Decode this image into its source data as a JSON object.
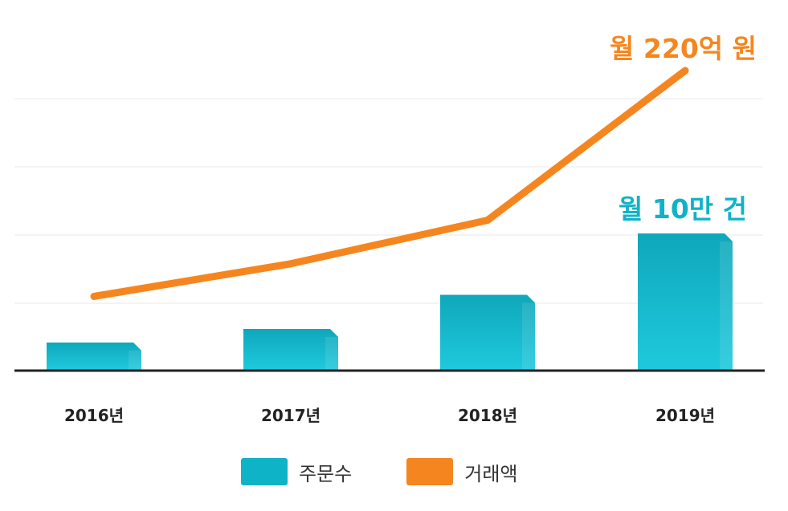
{
  "chart_data": {
    "type": "bar+line",
    "title": "",
    "categories": [
      "2016년",
      "2017년",
      "2018년",
      "2019년"
    ],
    "series": [
      {
        "name": "주문수",
        "kind": "bar",
        "color": "#0fb3c7",
        "values": [
          2.0,
          3.0,
          5.5,
          10.0
        ]
      },
      {
        "name": "거래액",
        "kind": "line",
        "color": "#f5861f",
        "values": [
          54,
          78,
          110,
          220
        ]
      }
    ],
    "annotations": [
      {
        "series": "거래액",
        "text": "월 220억 원"
      },
      {
        "series": "주문수",
        "text": "월 10만 건"
      }
    ],
    "grid": true,
    "legend_position": "bottom-center",
    "ylim_bar": [
      0,
      20
    ],
    "ylim_line": [
      0,
      220
    ]
  },
  "legend": {
    "items": [
      {
        "label": "주문수",
        "color": "#0fb3c7"
      },
      {
        "label": "거래액",
        "color": "#f5861f"
      }
    ]
  }
}
